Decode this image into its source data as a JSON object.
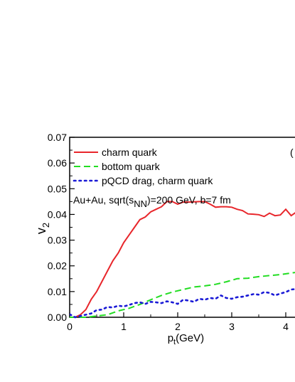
{
  "chart_data": {
    "type": "line",
    "xlabel": {
      "main": "p",
      "sub": "t",
      "unit": "(GeV)"
    },
    "ylabel": {
      "main": "v",
      "sub": "2"
    },
    "xlim": [
      0,
      4.2
    ],
    "ylim": [
      0,
      0.07
    ],
    "x_ticks": [
      0,
      1,
      2,
      3,
      4
    ],
    "y_ticks": [
      0.0,
      0.01,
      0.02,
      0.03,
      0.04,
      0.05,
      0.06,
      0.07
    ],
    "annotation": {
      "prefix": "Au+Au, sqrt(s",
      "sub": "NN",
      "suffix": ")=200 GeV, b=7 fm"
    },
    "panel_mark": "(",
    "series": [
      {
        "name": "charm quark",
        "color": "#e8262b",
        "style": "solid",
        "points": [
          [
            0.1,
            0.0
          ],
          [
            0.2,
            0.001
          ],
          [
            0.3,
            0.003
          ],
          [
            0.4,
            0.007
          ],
          [
            0.5,
            0.01
          ],
          [
            0.6,
            0.014
          ],
          [
            0.7,
            0.018
          ],
          [
            0.8,
            0.022
          ],
          [
            0.9,
            0.025
          ],
          [
            1.0,
            0.029
          ],
          [
            1.1,
            0.032
          ],
          [
            1.2,
            0.035
          ],
          [
            1.3,
            0.038
          ],
          [
            1.4,
            0.039
          ],
          [
            1.5,
            0.041
          ],
          [
            1.6,
            0.042
          ],
          [
            1.7,
            0.043
          ],
          [
            1.8,
            0.045
          ],
          [
            1.9,
            0.045
          ],
          [
            2.0,
            0.044
          ],
          [
            2.1,
            0.0448
          ],
          [
            2.2,
            0.0448
          ],
          [
            2.3,
            0.0449
          ],
          [
            2.4,
            0.045
          ],
          [
            2.5,
            0.045
          ],
          [
            2.6,
            0.044
          ],
          [
            2.7,
            0.0428
          ],
          [
            2.8,
            0.043
          ],
          [
            2.9,
            0.043
          ],
          [
            3.0,
            0.0428
          ],
          [
            3.1,
            0.042
          ],
          [
            3.2,
            0.0415
          ],
          [
            3.3,
            0.0402
          ],
          [
            3.4,
            0.0401
          ],
          [
            3.5,
            0.0399
          ],
          [
            3.6,
            0.0392
          ],
          [
            3.7,
            0.0405
          ],
          [
            3.8,
            0.0395
          ],
          [
            3.9,
            0.0398
          ],
          [
            4.0,
            0.042
          ],
          [
            4.1,
            0.0395
          ],
          [
            4.2,
            0.041
          ]
        ]
      },
      {
        "name": "bottom quark",
        "color": "#22dd22",
        "style": "dashed",
        "points": [
          [
            0.0,
            0.0
          ],
          [
            0.3,
            0.0
          ],
          [
            0.5,
            0.0005
          ],
          [
            0.7,
            0.001
          ],
          [
            0.9,
            0.0025
          ],
          [
            1.1,
            0.0035
          ],
          [
            1.3,
            0.005
          ],
          [
            1.5,
            0.0068
          ],
          [
            1.7,
            0.0085
          ],
          [
            1.9,
            0.0098
          ],
          [
            2.1,
            0.0108
          ],
          [
            2.3,
            0.0118
          ],
          [
            2.5,
            0.0122
          ],
          [
            2.7,
            0.0128
          ],
          [
            2.9,
            0.0138
          ],
          [
            3.1,
            0.015
          ],
          [
            3.3,
            0.0152
          ],
          [
            3.5,
            0.0158
          ],
          [
            3.7,
            0.0162
          ],
          [
            3.9,
            0.0166
          ],
          [
            4.1,
            0.0172
          ],
          [
            4.2,
            0.0175
          ]
        ]
      },
      {
        "name": "pQCD drag, charm quark",
        "color": "#1a1ad6",
        "style": "dotted",
        "points": [
          [
            0.0,
            0.0012
          ],
          [
            0.1,
            0.0
          ],
          [
            0.2,
            0.0005
          ],
          [
            0.3,
            0.001
          ],
          [
            0.4,
            0.0015
          ],
          [
            0.5,
            0.0028
          ],
          [
            0.6,
            0.003
          ],
          [
            0.7,
            0.004
          ],
          [
            0.8,
            0.0038
          ],
          [
            0.9,
            0.0045
          ],
          [
            1.0,
            0.0042
          ],
          [
            1.1,
            0.0048
          ],
          [
            1.2,
            0.0055
          ],
          [
            1.3,
            0.0058
          ],
          [
            1.4,
            0.0052
          ],
          [
            1.5,
            0.006
          ],
          [
            1.6,
            0.0058
          ],
          [
            1.7,
            0.0055
          ],
          [
            1.8,
            0.0062
          ],
          [
            1.9,
            0.0058
          ],
          [
            2.0,
            0.0052
          ],
          [
            2.1,
            0.0068
          ],
          [
            2.2,
            0.0065
          ],
          [
            2.3,
            0.006
          ],
          [
            2.4,
            0.0072
          ],
          [
            2.5,
            0.0068
          ],
          [
            2.6,
            0.0075
          ],
          [
            2.7,
            0.0072
          ],
          [
            2.8,
            0.0085
          ],
          [
            2.9,
            0.0075
          ],
          [
            3.0,
            0.0072
          ],
          [
            3.1,
            0.0078
          ],
          [
            3.2,
            0.008
          ],
          [
            3.3,
            0.0085
          ],
          [
            3.4,
            0.009
          ],
          [
            3.5,
            0.0088
          ],
          [
            3.6,
            0.0098
          ],
          [
            3.7,
            0.0095
          ],
          [
            3.8,
            0.0085
          ],
          [
            3.9,
            0.0092
          ],
          [
            4.0,
            0.0098
          ],
          [
            4.1,
            0.0108
          ],
          [
            4.2,
            0.011
          ]
        ]
      }
    ]
  }
}
